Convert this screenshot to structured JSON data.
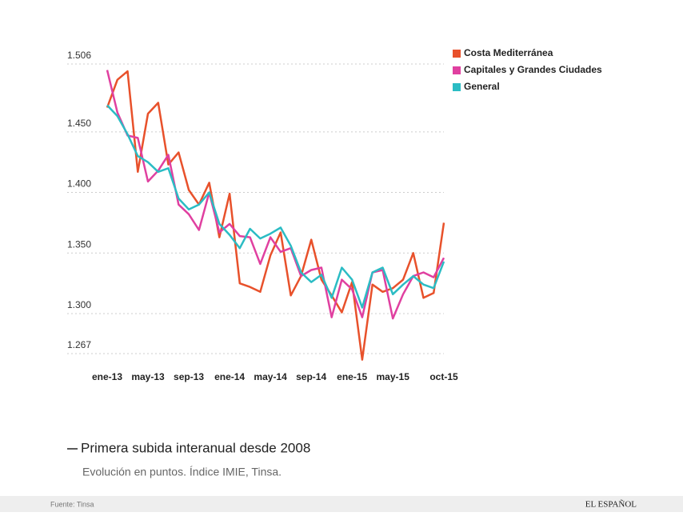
{
  "chart_data": {
    "type": "line",
    "title": "Primera subida interanual desde 2008",
    "subtitle": "Evolución en puntos. Índice IMIE, Tinsa.",
    "source": "Fuente: Tinsa",
    "brand": "EL ESPAÑOL",
    "categories": [
      "ene-13",
      null,
      null,
      null,
      "may-13",
      null,
      null,
      null,
      "sep-13",
      null,
      null,
      null,
      "ene-14",
      null,
      null,
      null,
      "may-14",
      null,
      null,
      null,
      "sep-14",
      null,
      null,
      null,
      "ene-15",
      null,
      null,
      null,
      "may-15",
      null,
      null,
      null,
      null,
      "oct-15"
    ],
    "series": [
      {
        "name": "Costa Mediterránea",
        "color": "#e8512b",
        "values": [
          1470,
          1493,
          1500,
          1417,
          1465,
          1474,
          1423,
          1433,
          1402,
          1390,
          1408,
          1363,
          1399,
          1325,
          1322,
          1318,
          1348,
          1367,
          1315,
          1331,
          1361,
          1328,
          1315,
          1301,
          1326,
          1262,
          1324,
          1318,
          1321,
          1328,
          1350,
          1313,
          1317,
          1375
        ]
      },
      {
        "name": "Capitales y Grandes Ciudades",
        "color": "#e040a0",
        "values": [
          1501,
          1466,
          1447,
          1445,
          1409,
          1418,
          1431,
          1390,
          1382,
          1369,
          1400,
          1367,
          1374,
          1364,
          1363,
          1341,
          1363,
          1351,
          1354,
          1331,
          1336,
          1338,
          1297,
          1328,
          1320,
          1297,
          1334,
          1336,
          1296,
          1316,
          1331,
          1334,
          1330,
          1346
        ]
      },
      {
        "name": "General",
        "color": "#2bbcc4",
        "values": [
          1472,
          1463,
          1448,
          1430,
          1425,
          1417,
          1420,
          1395,
          1386,
          1390,
          1400,
          1374,
          1365,
          1354,
          1370,
          1362,
          1366,
          1371,
          1356,
          1334,
          1326,
          1332,
          1313,
          1338,
          1328,
          1305,
          1334,
          1338,
          1316,
          1324,
          1331,
          1324,
          1321,
          1343
        ]
      }
    ],
    "ylim": [
      1267,
      1506
    ],
    "yticks": [
      {
        "value": 1267,
        "label": "1.267"
      },
      {
        "value": 1300,
        "label": "1.300"
      },
      {
        "value": 1350,
        "label": "1.350"
      },
      {
        "value": 1400,
        "label": "1.400"
      },
      {
        "value": 1450,
        "label": "1.450"
      },
      {
        "value": 1506,
        "label": "1.506"
      }
    ],
    "grid": true,
    "legend": "top-right"
  }
}
